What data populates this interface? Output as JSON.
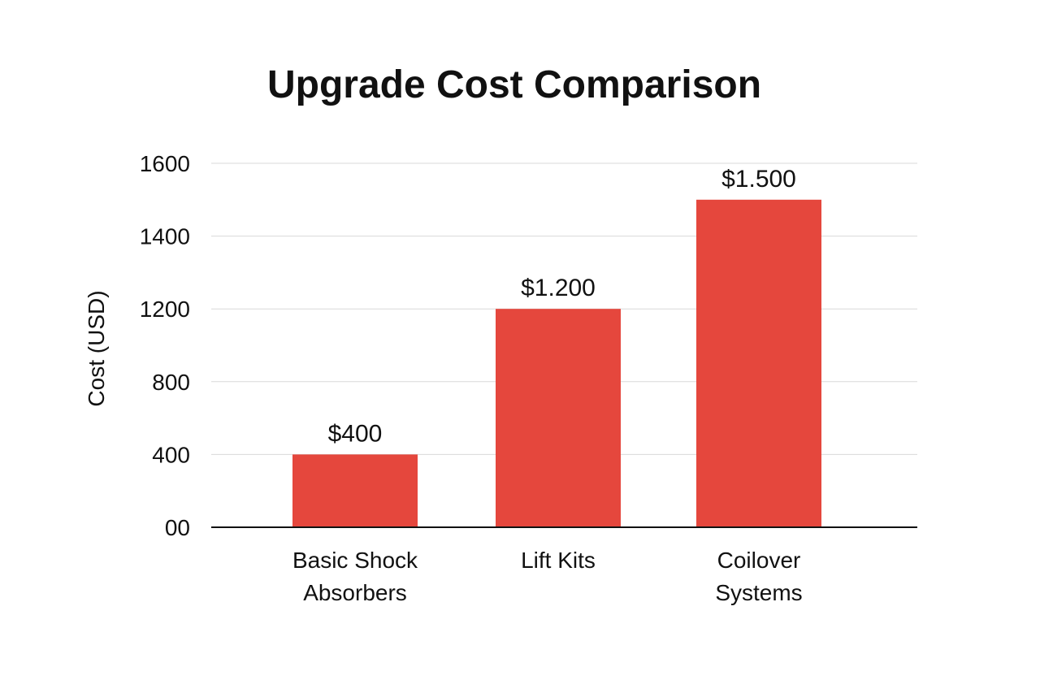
{
  "chart_data": {
    "type": "bar",
    "title": "Upgrade Cost Comparison",
    "xlabel": "",
    "ylabel": "Cost (USD)",
    "categories": [
      "Basic Shock Absorbers",
      "Lift Kits",
      "Coilover Systems"
    ],
    "category_labels": [
      [
        "Basic Shock",
        "Absorbers"
      ],
      [
        "Lift Kits"
      ],
      [
        "Coilover",
        "Systems"
      ]
    ],
    "values": [
      400,
      1200,
      1500
    ],
    "data_labels": [
      "$400",
      "$1.200",
      "$1.500"
    ],
    "y_ticks": [
      0,
      400,
      800,
      1200,
      1400,
      1600
    ],
    "y_tick_labels": [
      "00",
      "400",
      "800",
      "1200",
      "1400",
      "1600"
    ],
    "ylim": [
      0,
      1600
    ],
    "grid": true,
    "legend": "none",
    "colors": {
      "bar": "#e5473d",
      "gridline": "#d9d9d9",
      "axis": "#111111"
    }
  }
}
